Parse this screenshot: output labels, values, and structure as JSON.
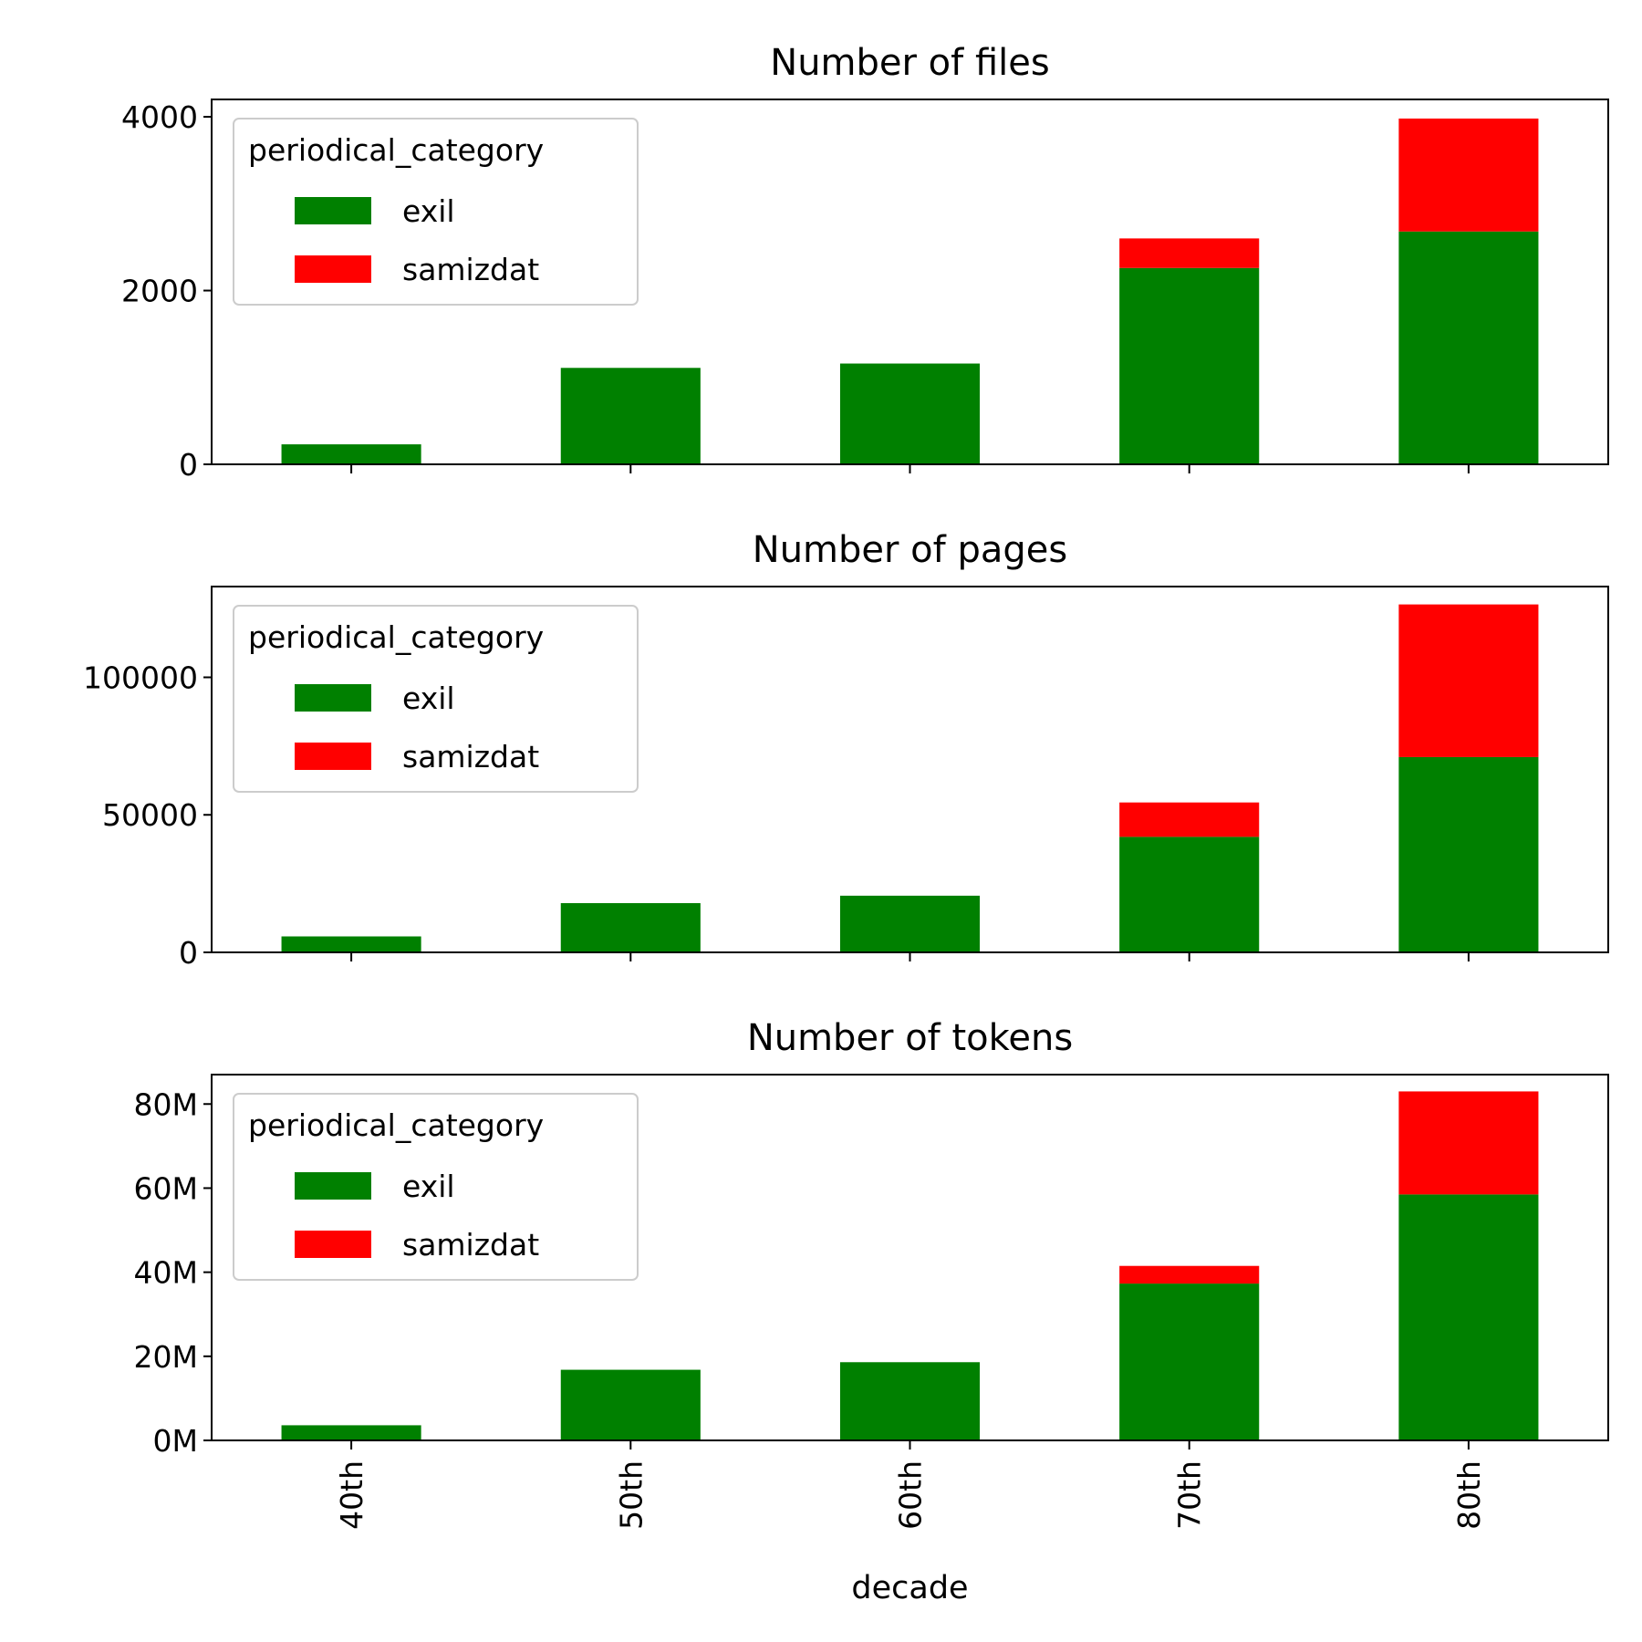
{
  "chart_data": [
    {
      "type": "bar",
      "stacked": true,
      "title": "Number of files",
      "xlabel": "",
      "ylabel": "",
      "categories": [
        "40th",
        "50th",
        "60th",
        "70th",
        "80th"
      ],
      "ylim": [
        0,
        4200
      ],
      "yticks": [
        0,
        2000,
        4000
      ],
      "ytick_labels": [
        "0",
        "2000",
        "4000"
      ],
      "legend": {
        "title": "periodical_category",
        "placement": "top-left"
      },
      "series": [
        {
          "name": "exil",
          "color": "#008000",
          "values": [
            230,
            1110,
            1160,
            2260,
            2680
          ]
        },
        {
          "name": "samizdat",
          "color": "#ff0000",
          "values": [
            0,
            0,
            0,
            340,
            1300
          ]
        }
      ]
    },
    {
      "type": "bar",
      "stacked": true,
      "title": "Number of pages",
      "xlabel": "",
      "ylabel": "",
      "categories": [
        "40th",
        "50th",
        "60th",
        "70th",
        "80th"
      ],
      "ylim": [
        0,
        133000
      ],
      "yticks": [
        0,
        50000,
        100000
      ],
      "ytick_labels": [
        "0",
        "50000",
        "100000"
      ],
      "legend": {
        "title": "periodical_category",
        "placement": "top-left"
      },
      "series": [
        {
          "name": "exil",
          "color": "#008000",
          "values": [
            5800,
            17900,
            20600,
            42000,
            71000
          ]
        },
        {
          "name": "samizdat",
          "color": "#ff0000",
          "values": [
            0,
            0,
            0,
            12500,
            55500
          ]
        }
      ]
    },
    {
      "type": "bar",
      "stacked": true,
      "title": "Number of tokens",
      "xlabel": "decade",
      "ylabel": "",
      "categories": [
        "40th",
        "50th",
        "60th",
        "70th",
        "80th"
      ],
      "ylim": [
        0,
        87000000
      ],
      "yticks": [
        0,
        20000000,
        40000000,
        60000000,
        80000000
      ],
      "ytick_labels": [
        "0M",
        "20M",
        "40M",
        "60M",
        "80M"
      ],
      "legend": {
        "title": "periodical_category",
        "placement": "top-left"
      },
      "series": [
        {
          "name": "exil",
          "color": "#008000",
          "values": [
            3600000,
            16800000,
            18600000,
            37300000,
            58500000
          ]
        },
        {
          "name": "samizdat",
          "color": "#ff0000",
          "values": [
            0,
            0,
            0,
            4200000,
            24500000
          ]
        }
      ]
    }
  ]
}
